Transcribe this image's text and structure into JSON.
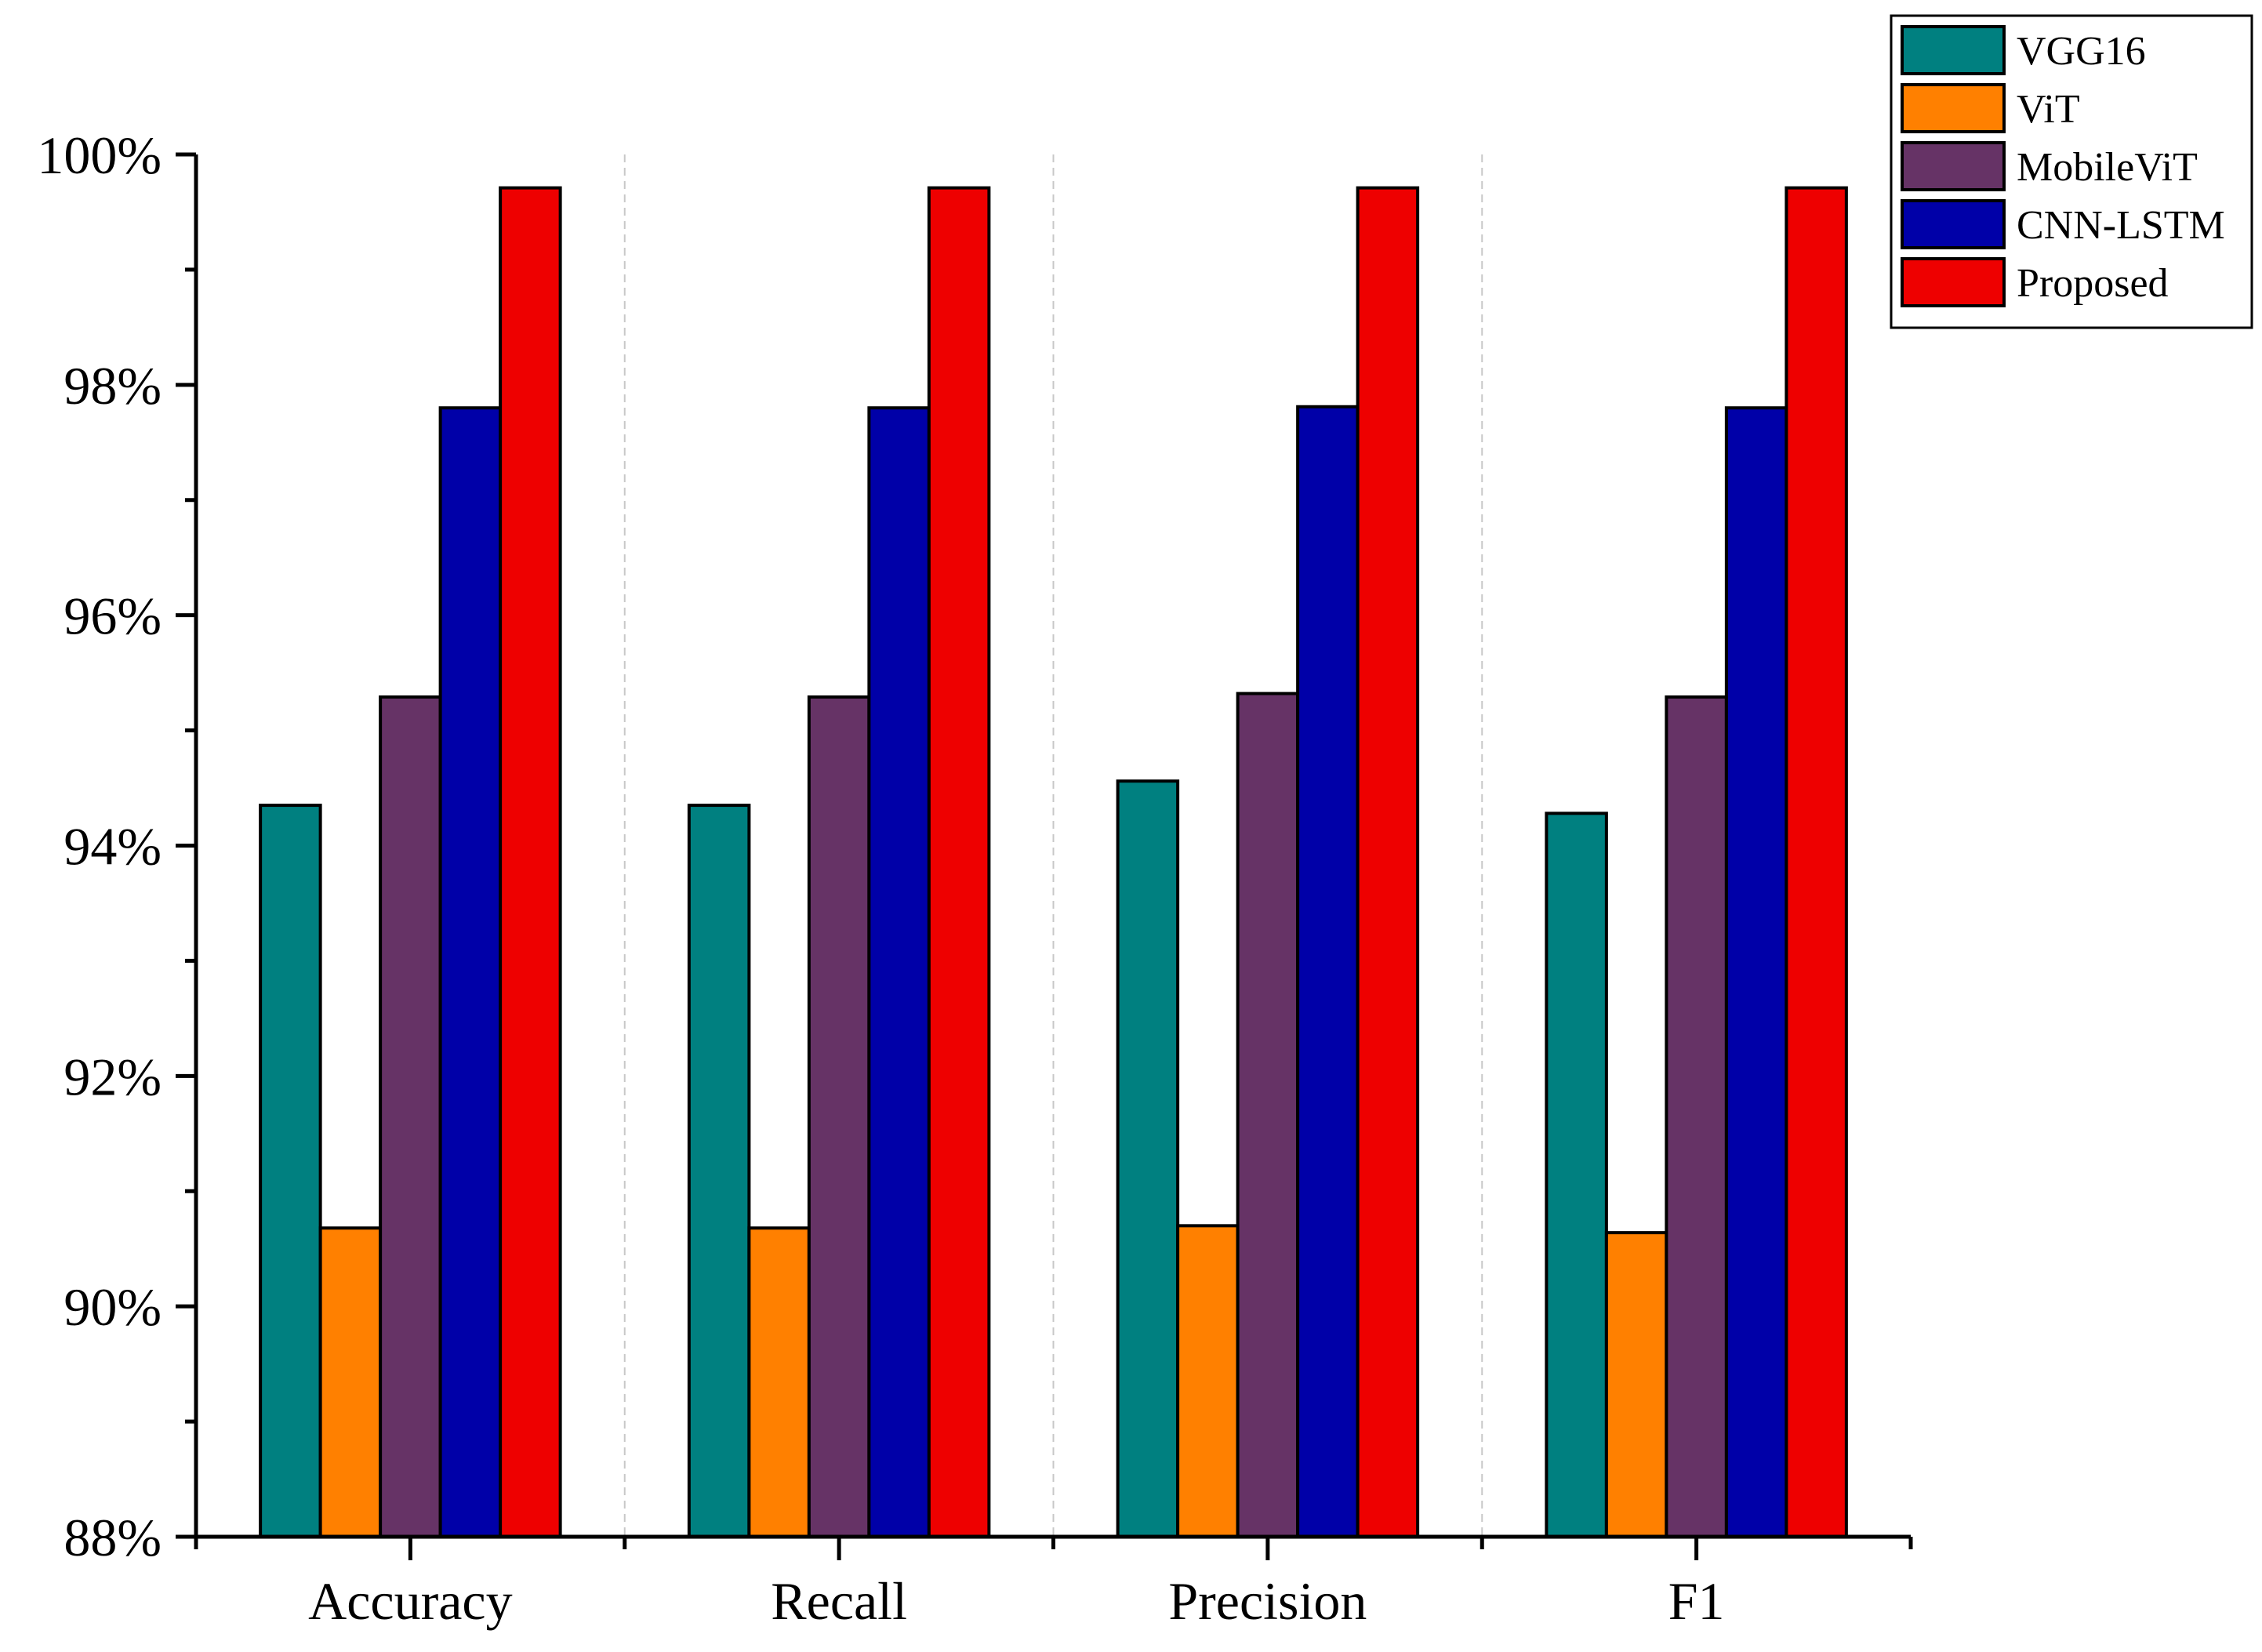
{
  "chart_data": {
    "type": "bar",
    "title": "",
    "xlabel": "",
    "ylabel": "",
    "categories": [
      "Accuracy",
      "Recall",
      "Precision",
      "F1"
    ],
    "ylim": [
      88,
      100
    ],
    "y_ticks": [
      88,
      90,
      92,
      94,
      96,
      98,
      100
    ],
    "y_tick_labels": [
      "88%",
      "90%",
      "92%",
      "94%",
      "96%",
      "98%",
      "100%"
    ],
    "y_minor_step": 1,
    "legend_position": "top-right",
    "vertical_separators": true,
    "series": [
      {
        "name": "VGG16",
        "color": "#008080",
        "values": [
          94.35,
          94.35,
          94.56,
          94.28
        ]
      },
      {
        "name": "ViT",
        "color": "#FF8000",
        "values": [
          90.68,
          90.68,
          90.7,
          90.64
        ]
      },
      {
        "name": "MobileViT",
        "color": "#663366",
        "values": [
          95.29,
          95.29,
          95.32,
          95.29
        ]
      },
      {
        "name": "CNN-LSTM",
        "color": "#0000A8",
        "values": [
          97.8,
          97.8,
          97.81,
          97.8
        ]
      },
      {
        "name": "Proposed",
        "color": "#EE0000",
        "values": [
          99.71,
          99.71,
          99.71,
          99.71
        ]
      }
    ]
  }
}
